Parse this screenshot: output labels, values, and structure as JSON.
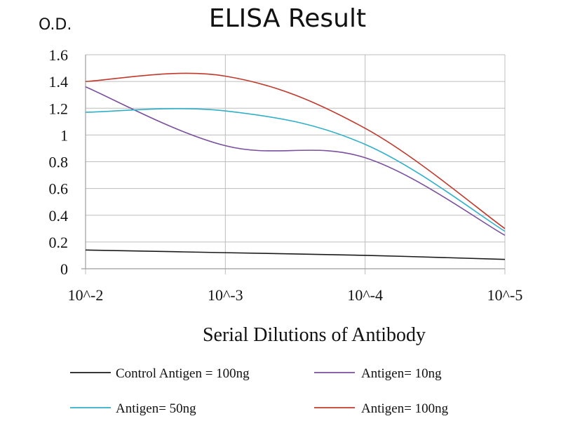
{
  "chart_data": {
    "type": "line",
    "title": "ELISA Result",
    "ylabel": "O.D.",
    "xlabel": "Serial Dilutions  of Antibody",
    "categories": [
      "10^-2",
      "10^-3",
      "10^-4",
      "10^-5"
    ],
    "ylim": [
      0,
      1.6
    ],
    "yticks": [
      "0",
      "0.2",
      "0.4",
      "0.6",
      "0.8",
      "1",
      "1.2",
      "1.4",
      "1.6"
    ],
    "grid": true,
    "legend_position": "bottom",
    "series": [
      {
        "name": "Control Antigen = 100ng",
        "color": "#1a1a1a",
        "values": [
          0.14,
          0.12,
          0.1,
          0.07
        ]
      },
      {
        "name": "Antigen= 10ng",
        "color": "#7a4f9e",
        "values": [
          1.36,
          0.92,
          0.83,
          0.25
        ]
      },
      {
        "name": "Antigen= 50ng",
        "color": "#2fb0c9",
        "values": [
          1.17,
          1.18,
          0.93,
          0.28
        ]
      },
      {
        "name": "Antigen= 100ng",
        "color": "#c0392b",
        "values": [
          1.4,
          1.44,
          1.05,
          0.3
        ]
      }
    ]
  }
}
